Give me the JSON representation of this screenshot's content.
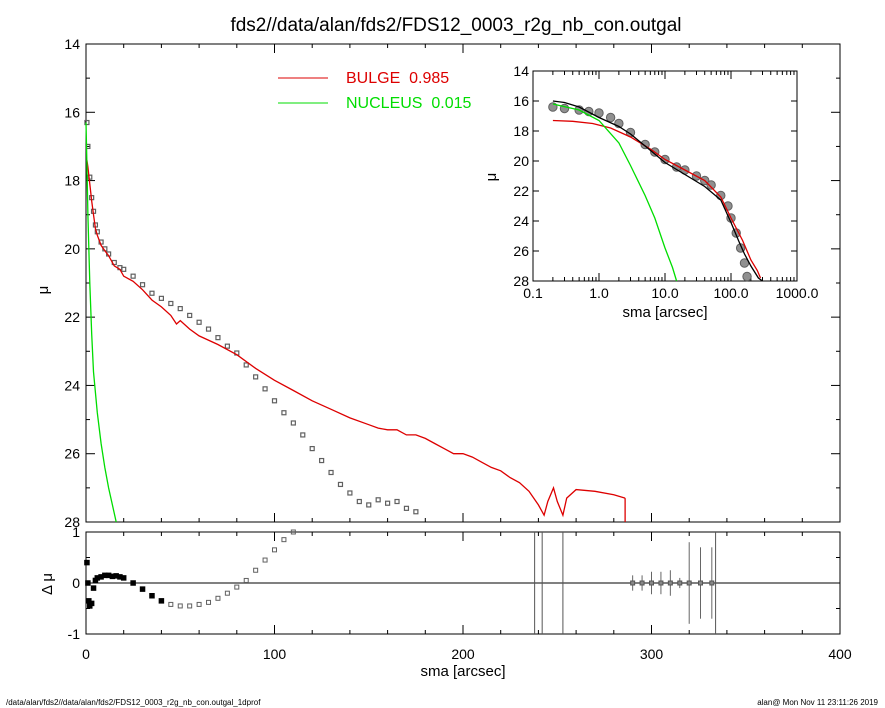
{
  "title": "fds2//data/alan/fds2/FDS12_0003_r2g_nb_con.outgal",
  "footer_left": "/data/alan/fds2//data/alan/fds2/FDS12_0003_r2g_nb_con.outgal_1dprof",
  "footer_right": "alan@  Mon Nov 11 23:11:26 2019",
  "colors": {
    "bulge": "#dd0000",
    "nucleus": "#00dd00",
    "data": "#606060",
    "axis": "#000000"
  },
  "chart_data": [
    {
      "panel": "main",
      "type": "line",
      "xlabel": "",
      "ylabel": "μ",
      "xlim": [
        0,
        400
      ],
      "ylim": [
        28,
        14
      ],
      "y_reversed": true,
      "yticks": [
        "14",
        "16",
        "18",
        "20",
        "22",
        "24",
        "26",
        "28"
      ],
      "legend": [
        {
          "name": "BULGE",
          "value": "0.985",
          "label": "BULGE  0.985",
          "color": "#dd0000"
        },
        {
          "name": "NUCLEUS",
          "value": "0.015",
          "label": "NUCLEUS  0.015",
          "color": "#00dd00"
        }
      ],
      "series": [
        {
          "name": "BULGE",
          "x": [
            0.5,
            1,
            2,
            3,
            4,
            5,
            6,
            8,
            10,
            12,
            15,
            18,
            20,
            25,
            30,
            35,
            40,
            45,
            48,
            50,
            55,
            60,
            70,
            80,
            90,
            100,
            110,
            120,
            130,
            140,
            150,
            155,
            160,
            165,
            170,
            175,
            180,
            185,
            190,
            195,
            200,
            205,
            210,
            215,
            220,
            225,
            230,
            235,
            240,
            243,
            245,
            248,
            250,
            253,
            255,
            260,
            270,
            280,
            286
          ],
          "y": [
            17.4,
            17.6,
            18.1,
            18.6,
            19.0,
            19.4,
            19.6,
            19.9,
            20.05,
            20.2,
            20.5,
            20.6,
            20.8,
            20.95,
            21.2,
            21.5,
            21.7,
            21.95,
            22.2,
            22.1,
            22.35,
            22.55,
            22.8,
            23.1,
            23.5,
            23.85,
            24.15,
            24.45,
            24.7,
            24.95,
            25.15,
            25.25,
            25.3,
            25.3,
            25.45,
            25.45,
            25.55,
            25.7,
            25.85,
            26.0,
            26.0,
            26.1,
            26.25,
            26.4,
            26.5,
            26.7,
            26.85,
            27.1,
            27.5,
            27.8,
            27.4,
            27.0,
            27.4,
            27.8,
            27.3,
            27.05,
            27.1,
            27.2,
            27.3
          ]
        },
        {
          "name": "NUCLEUS",
          "x": [
            0,
            0.5,
            1,
            2,
            3,
            4,
            6,
            8,
            10,
            12,
            14,
            16
          ],
          "y": [
            16.3,
            17.5,
            19.0,
            21.0,
            22.5,
            23.6,
            24.8,
            25.7,
            26.4,
            27.0,
            27.5,
            28.0
          ]
        },
        {
          "name": "data",
          "x": [
            0.5,
            1,
            2,
            3,
            4,
            5,
            6,
            8,
            10,
            12,
            15,
            18,
            20,
            25,
            30,
            35,
            40,
            45,
            50,
            55,
            60,
            65,
            70,
            75,
            80,
            85,
            90,
            95,
            100,
            105,
            110,
            115,
            120,
            125,
            130,
            135,
            140,
            145,
            150,
            155,
            160,
            165,
            170,
            175
          ],
          "y": [
            16.3,
            17.0,
            17.9,
            18.5,
            18.9,
            19.3,
            19.5,
            19.8,
            20.0,
            20.15,
            20.4,
            20.55,
            20.6,
            20.8,
            21.05,
            21.3,
            21.45,
            21.6,
            21.75,
            21.95,
            22.15,
            22.35,
            22.6,
            22.85,
            23.05,
            23.4,
            23.75,
            24.1,
            24.45,
            24.8,
            25.1,
            25.45,
            25.85,
            26.2,
            26.55,
            26.9,
            27.15,
            27.4,
            27.5,
            27.35,
            27.45,
            27.4,
            27.6,
            27.7
          ]
        }
      ]
    },
    {
      "panel": "inset",
      "type": "line",
      "xlabel": "sma [arcsec]",
      "ylabel": "μ",
      "xscale": "log",
      "xlim": [
        0.1,
        1000
      ],
      "ylim": [
        28,
        14
      ],
      "xticks": [
        "0.1",
        "1.0",
        "10.0",
        "100.0",
        "1000.0"
      ],
      "yticks": [
        "14",
        "16",
        "18",
        "20",
        "22",
        "24",
        "26",
        "28"
      ],
      "series": [
        {
          "name": "BULGE",
          "x": [
            0.2,
            0.4,
            0.8,
            1.5,
            3,
            6,
            10,
            20,
            40,
            70,
            100,
            150,
            200,
            250,
            280
          ],
          "y": [
            17.3,
            17.35,
            17.5,
            17.8,
            18.4,
            19.2,
            19.9,
            20.6,
            21.3,
            22.4,
            23.8,
            25.3,
            26.6,
            27.3,
            27.8
          ]
        },
        {
          "name": "NUCLEUS",
          "x": [
            0.2,
            0.5,
            1,
            2,
            3,
            5,
            7,
            10,
            13,
            15
          ],
          "y": [
            16.2,
            16.6,
            17.3,
            18.8,
            20.3,
            22.3,
            23.8,
            25.8,
            27.1,
            28.0
          ]
        },
        {
          "name": "model",
          "x": [
            0.2,
            0.3,
            0.5,
            1,
            2,
            3,
            5,
            10,
            20,
            40,
            70,
            100,
            130,
            160,
            200,
            260,
            300
          ],
          "y": [
            16.0,
            16.1,
            16.4,
            17.1,
            17.7,
            18.2,
            19.0,
            20.1,
            20.9,
            21.7,
            22.6,
            24.1,
            25.3,
            26.2,
            27.0,
            27.8,
            28.0
          ]
        },
        {
          "name": "data",
          "x": [
            0.2,
            0.3,
            0.5,
            0.7,
            1,
            1.5,
            2,
            3,
            5,
            7,
            10,
            15,
            20,
            30,
            40,
            50,
            70,
            90,
            100,
            120,
            140,
            160,
            175
          ],
          "y": [
            16.4,
            16.5,
            16.6,
            16.7,
            16.8,
            17.1,
            17.5,
            18.1,
            18.9,
            19.4,
            19.9,
            20.4,
            20.6,
            21.0,
            21.3,
            21.6,
            22.3,
            23.0,
            23.8,
            24.8,
            25.8,
            26.8,
            27.7
          ]
        }
      ]
    },
    {
      "panel": "residual",
      "type": "scatter",
      "xlabel": "sma [arcsec]",
      "ylabel": "Δ μ",
      "xlim": [
        0,
        400
      ],
      "ylim": [
        -1,
        1
      ],
      "xticks": [
        "0",
        "100",
        "200",
        "300",
        "400"
      ],
      "yticks": [
        "-1",
        "0",
        "1"
      ],
      "series": [
        {
          "name": "residual",
          "x": [
            0.5,
            1,
            1.5,
            2,
            3,
            4,
            5,
            6,
            8,
            10,
            12,
            14,
            16,
            18,
            20,
            25,
            30,
            35,
            40,
            45,
            50,
            55,
            60,
            65,
            70,
            75,
            80,
            85,
            90,
            95,
            100,
            105,
            110
          ],
          "y": [
            0.4,
            0.0,
            -0.35,
            -0.45,
            -0.4,
            -0.1,
            0.05,
            0.1,
            0.12,
            0.15,
            0.15,
            0.13,
            0.14,
            0.12,
            0.1,
            0.0,
            -0.12,
            -0.25,
            -0.35,
            -0.42,
            -0.45,
            -0.45,
            -0.42,
            -0.38,
            -0.3,
            -0.2,
            -0.08,
            0.05,
            0.25,
            0.45,
            0.65,
            0.85,
            1.0
          ]
        },
        {
          "name": "sparse_points",
          "x": [
            290,
            295,
            300,
            305,
            310,
            315,
            320,
            326,
            332
          ],
          "y": [
            0,
            0,
            0,
            0,
            0,
            0,
            0,
            0,
            0
          ],
          "err": [
            0.15,
            0.15,
            0.22,
            0.22,
            0.25,
            0.1,
            0.8,
            0.7,
            0.7
          ]
        }
      ],
      "vertical_lines_x": [
        238,
        242,
        253,
        334
      ]
    }
  ]
}
